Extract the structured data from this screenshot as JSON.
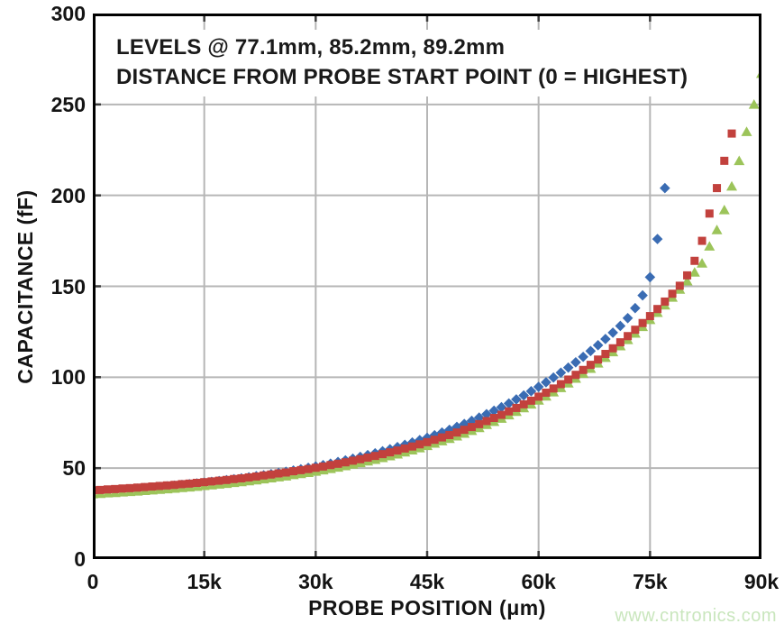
{
  "watermark": "www.cntronics.com",
  "colors": {
    "background": "#ffffff",
    "frame": "#000000",
    "gridline": "#b6b6b6",
    "tick_mark": "#3d3d3d",
    "text": "#141414",
    "watermark": "#c9e6bd",
    "series_blue": "#3a6cb3",
    "series_red": "#c2413d",
    "series_green": "#9cc45a"
  },
  "chart_data": {
    "type": "scatter",
    "title_annotation": [
      "LEVELS @ 77.1mm, 85.2mm, 89.2mm",
      "DISTANCE FROM PROBE START POINT (0 = HIGHEST)"
    ],
    "xlabel": "PROBE POSITION (μm)",
    "ylabel": "CAPACITANCE (fF)",
    "x_unit": "μm",
    "y_unit": "fF",
    "xlim": [
      0,
      90000
    ],
    "ylim": [
      0,
      300
    ],
    "x_tick_values": [
      0,
      15000,
      30000,
      45000,
      60000,
      75000,
      90000
    ],
    "x_tick_labels": [
      "0",
      "15k",
      "30k",
      "45k",
      "60k",
      "75k",
      "90k"
    ],
    "y_tick_values": [
      0,
      50,
      100,
      150,
      200,
      250,
      300
    ],
    "y_tick_labels": [
      "0",
      "50",
      "100",
      "150",
      "200",
      "250",
      "300"
    ],
    "grid": true,
    "legend": "none",
    "series": [
      {
        "id": "level-77-1mm",
        "name": "77.1mm",
        "marker": "diamond",
        "color": "#3a6cb3",
        "x_start_um": 0,
        "x_step_um": 1000,
        "capacitance_fF": [
          37.0,
          37.3,
          37.5,
          37.8,
          38.1,
          38.4,
          38.7,
          39.0,
          39.3,
          39.7,
          40.0,
          40.4,
          40.8,
          41.2,
          41.6,
          42.0,
          42.5,
          42.9,
          43.4,
          43.9,
          44.4,
          45.0,
          45.6,
          46.1,
          46.7,
          47.4,
          48.0,
          48.7,
          49.4,
          50.2,
          50.9,
          51.7,
          52.5,
          53.4,
          54.3,
          55.2,
          56.2,
          57.2,
          58.2,
          59.3,
          60.4,
          61.6,
          62.8,
          64.1,
          65.4,
          66.7,
          68.1,
          69.6,
          71.1,
          72.7,
          74.3,
          76.0,
          77.8,
          79.7,
          81.6,
          83.5,
          85.6,
          87.8,
          90.0,
          92.3,
          94.7,
          97.2,
          99.8,
          102.5,
          105.3,
          108.2,
          111.2,
          114.4,
          117.6,
          121.0,
          124.5,
          128.2,
          132.5,
          138.0,
          145.0,
          155.0,
          176.0,
          204.0
        ]
      },
      {
        "id": "level-89-2mm",
        "name": "89.2mm",
        "marker": "triangle",
        "color": "#9cc45a",
        "x_start_um": 0,
        "x_step_um": 1000,
        "capacitance_fF": [
          35.8,
          36.0,
          36.3,
          36.5,
          36.8,
          37.0,
          37.3,
          37.6,
          37.9,
          38.2,
          38.5,
          38.8,
          39.2,
          39.5,
          39.9,
          40.3,
          40.7,
          41.1,
          41.5,
          42.0,
          42.4,
          42.9,
          43.4,
          44.0,
          44.5,
          45.1,
          45.6,
          46.3,
          46.9,
          47.5,
          48.2,
          48.9,
          49.7,
          50.4,
          51.2,
          52.1,
          52.9,
          53.8,
          54.7,
          55.7,
          56.7,
          57.7,
          58.8,
          59.9,
          61.1,
          62.3,
          63.6,
          64.9,
          66.2,
          67.6,
          69.1,
          70.6,
          72.2,
          73.9,
          75.6,
          77.3,
          79.2,
          81.1,
          83.1,
          85.1,
          87.3,
          89.5,
          91.8,
          94.2,
          96.7,
          99.3,
          102.0,
          104.8,
          107.7,
          110.8,
          113.9,
          117.2,
          120.6,
          124.1,
          127.8,
          131.6,
          135.5,
          139.6,
          143.9,
          148.3,
          152.9,
          157.7,
          162.7,
          172.0,
          181.0,
          192.0,
          205.0,
          219.0,
          235.0,
          250.0,
          267.0
        ]
      },
      {
        "id": "level-85-2mm",
        "name": "85.2mm",
        "marker": "square",
        "color": "#c2413d",
        "x_start_um": 0,
        "x_step_um": 1000,
        "capacitance_fF": [
          37.8,
          38.0,
          38.3,
          38.5,
          38.8,
          39.0,
          39.3,
          39.6,
          39.9,
          40.2,
          40.5,
          40.8,
          41.2,
          41.5,
          41.9,
          42.3,
          42.7,
          43.1,
          43.5,
          44.0,
          44.4,
          44.9,
          45.4,
          46.0,
          46.5,
          47.1,
          47.6,
          48.3,
          48.9,
          49.5,
          50.2,
          50.9,
          51.7,
          52.4,
          53.2,
          54.1,
          54.9,
          55.8,
          56.7,
          57.7,
          58.7,
          59.7,
          60.8,
          61.9,
          63.1,
          64.3,
          65.6,
          66.9,
          68.2,
          69.6,
          71.1,
          72.6,
          74.2,
          75.9,
          77.6,
          79.3,
          81.2,
          83.1,
          85.1,
          87.1,
          89.3,
          91.5,
          93.8,
          96.2,
          98.7,
          101.3,
          104.0,
          106.8,
          109.7,
          112.8,
          115.9,
          119.2,
          122.6,
          126.1,
          129.8,
          133.6,
          137.5,
          141.6,
          145.9,
          150.3,
          156.0,
          164.0,
          175.0,
          190.0,
          204.0,
          219.0,
          234.0
        ]
      }
    ]
  }
}
